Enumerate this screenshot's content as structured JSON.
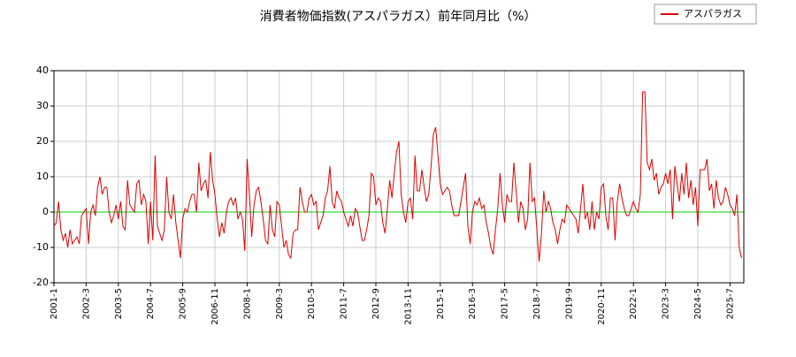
{
  "chart_data": {
    "type": "line",
    "title": "消費者物価指数(アスパラガス）前年同月比（%）",
    "categories": [
      "2001-1",
      null,
      null,
      null,
      null,
      null,
      null,
      null,
      null,
      null,
      null,
      null,
      null,
      null,
      "2002-3",
      null,
      null,
      null,
      null,
      null,
      null,
      null,
      null,
      null,
      null,
      null,
      null,
      null,
      "2003-5",
      null,
      null,
      null,
      null,
      null,
      null,
      null,
      null,
      null,
      null,
      null,
      null,
      null,
      "2004-7",
      null,
      null,
      null,
      null,
      null,
      null,
      null,
      null,
      null,
      null,
      null,
      null,
      null,
      "2005-9",
      null,
      null,
      null,
      null,
      null,
      null,
      null,
      null,
      null,
      null,
      null,
      null,
      null,
      "2006-11",
      null,
      null,
      null,
      null,
      null,
      null,
      null,
      null,
      null,
      null,
      null,
      null,
      null,
      "2008-1",
      null,
      null,
      null,
      null,
      null,
      null,
      null,
      null,
      null,
      null,
      null,
      null,
      null,
      "2009-3",
      null,
      null,
      null,
      null,
      null,
      null,
      null,
      null,
      null,
      null,
      null,
      null,
      null,
      "2010-5",
      null,
      null,
      null,
      null,
      null,
      null,
      null,
      null,
      null,
      null,
      null,
      null,
      null,
      "2011-7",
      null,
      null,
      null,
      null,
      null,
      null,
      null,
      null,
      null,
      null,
      null,
      null,
      null,
      "2012-9",
      null,
      null,
      null,
      null,
      null,
      null,
      null,
      null,
      null,
      null,
      null,
      null,
      null,
      "2013-11",
      null,
      null,
      null,
      null,
      null,
      null,
      null,
      null,
      null,
      null,
      null,
      null,
      null,
      "2015-1",
      null,
      null,
      null,
      null,
      null,
      null,
      null,
      null,
      null,
      null,
      null,
      null,
      null,
      "2016-3",
      null,
      null,
      null,
      null,
      null,
      null,
      null,
      null,
      null,
      null,
      null,
      null,
      null,
      "2017-5",
      null,
      null,
      null,
      null,
      null,
      null,
      null,
      null,
      null,
      null,
      null,
      null,
      null,
      "2018-7",
      null,
      null,
      null,
      null,
      null,
      null,
      null,
      null,
      null,
      null,
      null,
      null,
      null,
      "2019-9",
      null,
      null,
      null,
      null,
      null,
      null,
      null,
      null,
      null,
      null,
      null,
      null,
      null,
      "2020-11",
      null,
      null,
      null,
      null,
      null,
      null,
      null,
      null,
      null,
      null,
      null,
      null,
      null,
      "2022-1",
      null,
      null,
      null,
      null,
      null,
      null,
      null,
      null,
      null,
      null,
      null,
      null,
      null,
      "2023-3",
      null,
      null,
      null,
      null,
      null,
      null,
      null,
      null,
      null,
      null,
      null,
      null,
      null,
      "2024-5",
      null,
      null,
      null,
      null,
      null,
      null,
      null,
      null,
      null,
      null,
      null,
      null,
      null,
      "2025-7",
      null,
      null,
      null,
      null,
      null
    ],
    "series": [
      {
        "name": "アスパラガス",
        "color": "#dd0000",
        "values": [
          -4,
          -3,
          3,
          -5,
          -8,
          -6,
          -10,
          -5,
          -9,
          -8,
          -7,
          -9,
          -1,
          0,
          1,
          -9,
          0,
          2,
          -1,
          7,
          10,
          5,
          7,
          7,
          0,
          -3,
          -1,
          2,
          -2,
          3,
          -4,
          -5,
          9,
          2,
          1,
          0,
          8,
          9,
          2,
          5,
          3,
          -9,
          3,
          -8,
          16,
          -4,
          -6,
          -8,
          -5,
          10,
          0,
          -2,
          5,
          -3,
          -8,
          -13,
          -2,
          1,
          0,
          3,
          5,
          5,
          0,
          14,
          6,
          8,
          9,
          4,
          17,
          9,
          5,
          -2,
          -7,
          -3,
          -6,
          0,
          3,
          4,
          2,
          4,
          -2,
          0,
          -2,
          -11,
          15,
          5,
          -7,
          2,
          6,
          7,
          3,
          -2,
          -8,
          -9,
          2,
          -5,
          -7,
          3,
          2,
          -4,
          -10,
          -8,
          -12,
          -13,
          -6,
          -5,
          -5,
          7,
          3,
          0,
          0,
          4,
          5,
          2,
          3,
          -5,
          -3,
          -1,
          4,
          6,
          13,
          3,
          1,
          6,
          4,
          3,
          0,
          -2,
          -4,
          -1,
          -4,
          1,
          0,
          -4,
          -8,
          -8,
          -5,
          -1,
          11,
          10,
          2,
          4,
          3,
          -3,
          -6,
          1,
          9,
          4,
          11,
          17,
          20,
          5,
          0,
          -3,
          3,
          4,
          -2,
          16,
          6,
          6,
          12,
          7,
          3,
          5,
          13,
          22,
          24,
          16,
          8,
          5,
          6,
          7,
          6,
          2,
          -1,
          -1,
          -1,
          3,
          7,
          11,
          -4,
          -9,
          0,
          3,
          2,
          4,
          1,
          2,
          -3,
          -6,
          -10,
          -12,
          -5,
          1,
          11,
          2,
          -3,
          5,
          3,
          3,
          14,
          6,
          -3,
          3,
          1,
          -5,
          -2,
          14,
          3,
          4,
          -5,
          -14,
          -6,
          6,
          0,
          3,
          1,
          -3,
          -5,
          -9,
          -5,
          -2,
          -3,
          2,
          1,
          0,
          -1,
          -2,
          -6,
          1,
          8,
          -2,
          0,
          -5,
          3,
          -5,
          0,
          -2,
          7,
          8,
          -1,
          -5,
          4,
          4,
          -8,
          3,
          8,
          4,
          1,
          -1,
          -1,
          1,
          3,
          1,
          0,
          5,
          34,
          34,
          14,
          12,
          15,
          9,
          11,
          5,
          7,
          8,
          11,
          8,
          12,
          -2,
          13,
          8,
          3,
          11,
          5,
          14,
          4,
          9,
          2,
          7,
          -4,
          12,
          12,
          12,
          15,
          6,
          8,
          1,
          9,
          4,
          2,
          3,
          7,
          5,
          2,
          1,
          -1,
          5,
          -10,
          -13
        ]
      }
    ],
    "ylim": [
      -20,
      40
    ],
    "yticks": [
      -20,
      -10,
      0,
      10,
      20,
      30,
      40
    ],
    "grid": true,
    "legend": "top-right"
  }
}
